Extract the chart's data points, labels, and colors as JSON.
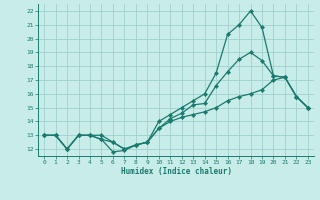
{
  "background_color": "#c8ece8",
  "grid_color": "#a0d0cc",
  "line_color": "#1a7a6e",
  "xlabel": "Humidex (Indice chaleur)",
  "xlim": [
    -0.5,
    23.5
  ],
  "ylim": [
    11.5,
    22.5
  ],
  "xticks": [
    0,
    1,
    2,
    3,
    4,
    5,
    6,
    7,
    8,
    9,
    10,
    11,
    12,
    13,
    14,
    15,
    16,
    17,
    18,
    19,
    20,
    21,
    22,
    23
  ],
  "yticks": [
    12,
    13,
    14,
    15,
    16,
    17,
    18,
    19,
    20,
    21,
    22
  ],
  "line1_x": [
    0,
    1,
    2,
    3,
    4,
    5,
    6,
    7,
    8,
    9,
    10,
    11,
    12,
    13,
    14,
    15,
    16,
    17,
    18,
    19,
    20,
    21,
    22,
    23
  ],
  "line1_y": [
    13,
    13,
    12,
    13,
    13,
    12.7,
    11.8,
    11.9,
    12.3,
    12.5,
    13.5,
    14.2,
    14.6,
    15.2,
    15.3,
    16.6,
    17.6,
    18.5,
    19.0,
    18.4,
    17.3,
    17.2,
    15.8,
    15.0
  ],
  "line2_x": [
    0,
    1,
    2,
    3,
    4,
    5,
    6,
    7,
    8,
    9,
    10,
    11,
    12,
    13,
    14,
    15,
    16,
    17,
    18,
    19,
    20,
    21,
    22,
    23
  ],
  "line2_y": [
    13,
    13,
    12,
    13,
    13,
    12.7,
    12.5,
    12.0,
    12.3,
    12.5,
    14.0,
    14.5,
    15.0,
    15.5,
    16.0,
    17.5,
    20.3,
    21.0,
    22.0,
    20.8,
    17.3,
    17.2,
    15.8,
    15.0
  ],
  "line3_x": [
    0,
    1,
    2,
    3,
    4,
    5,
    6,
    7,
    8,
    9,
    10,
    11,
    12,
    13,
    14,
    15,
    16,
    17,
    18,
    19,
    20,
    21,
    22,
    23
  ],
  "line3_y": [
    13,
    13,
    12,
    13,
    13,
    13.0,
    12.5,
    12.0,
    12.3,
    12.5,
    13.5,
    14.0,
    14.3,
    14.5,
    14.7,
    15.0,
    15.5,
    15.8,
    16.0,
    16.3,
    17.0,
    17.2,
    15.8,
    15.0
  ]
}
